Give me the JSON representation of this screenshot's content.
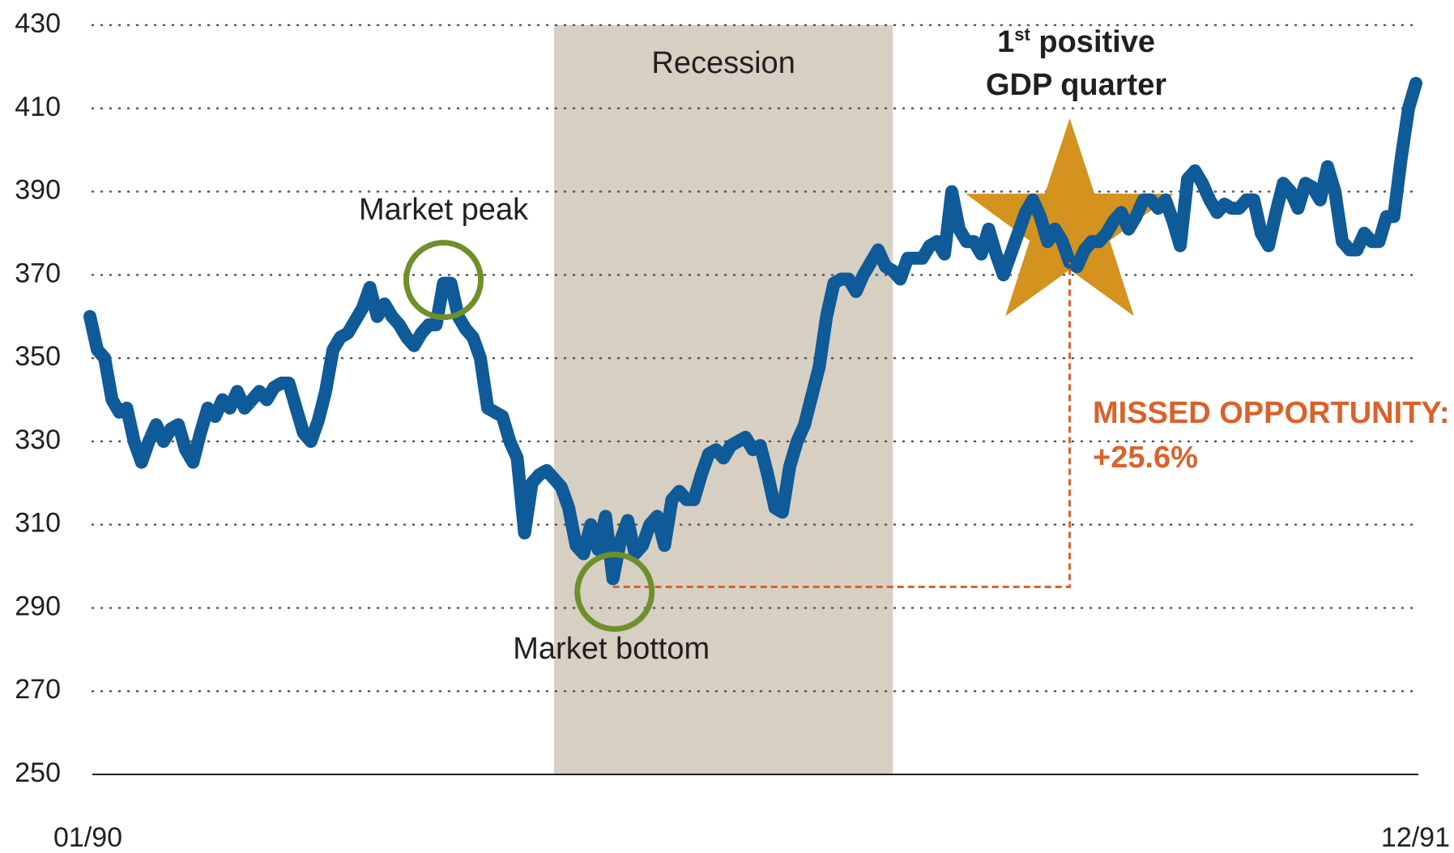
{
  "chart_data": {
    "type": "line",
    "categories": [
      "01/90",
      null,
      null,
      null,
      null,
      null,
      null,
      null,
      null,
      null,
      null,
      null,
      null,
      null,
      null,
      null,
      null,
      null,
      null,
      null,
      null,
      null,
      null,
      null,
      null,
      null,
      null,
      null,
      null,
      null,
      null,
      null,
      null,
      null,
      null,
      null,
      null,
      null,
      null,
      null,
      null,
      null,
      null,
      null,
      null,
      null,
      null,
      null,
      null,
      null,
      null,
      null,
      null,
      null,
      null,
      null,
      null,
      null,
      null,
      null,
      null,
      null,
      null,
      null,
      null,
      null,
      null,
      null,
      null,
      null,
      null,
      null,
      null,
      null,
      null,
      null,
      null,
      null,
      null,
      null,
      null,
      null,
      null,
      null,
      null,
      null,
      null,
      null,
      null,
      null,
      null,
      null,
      null,
      null,
      null,
      null,
      null,
      null,
      null,
      null,
      null,
      null,
      null,
      null,
      null,
      null,
      null,
      null,
      null,
      null,
      null,
      null,
      null,
      null,
      null,
      null,
      null,
      null,
      null,
      null,
      null,
      null,
      null,
      null,
      null,
      null,
      null,
      null,
      null,
      null,
      null,
      null,
      null,
      null,
      null,
      null,
      null,
      null,
      null,
      null,
      null,
      null,
      null,
      null,
      null,
      null,
      null,
      null,
      null,
      null,
      null,
      null,
      null,
      null,
      null,
      null,
      null,
      null,
      null,
      null,
      null,
      null,
      null,
      null,
      null,
      null,
      null,
      null,
      null,
      null,
      null,
      null,
      null,
      null,
      null,
      null,
      null,
      null,
      null,
      null,
      "12/91"
    ],
    "series": [
      {
        "name": null,
        "color": "#0f5a98",
        "values": [
          360,
          352,
          350,
          340,
          337,
          338,
          330,
          325,
          330,
          334,
          330,
          333,
          334,
          328,
          325,
          332,
          338,
          336,
          340,
          338,
          342,
          338,
          340,
          342,
          340,
          343,
          344,
          344,
          338,
          332,
          330,
          335,
          342,
          352,
          355,
          356,
          359,
          362,
          367,
          360,
          363,
          360,
          358,
          355,
          353,
          356,
          358,
          358,
          368,
          368,
          360,
          357,
          355,
          350,
          338,
          337,
          336,
          330,
          326,
          308,
          320,
          322,
          323,
          321,
          319,
          314,
          305,
          303,
          310,
          304,
          312,
          297,
          306,
          311,
          303,
          305,
          310,
          312,
          305,
          316,
          318,
          316,
          316,
          322,
          327,
          328,
          326,
          329,
          330,
          331,
          328,
          329,
          322,
          314,
          313,
          324,
          330,
          334,
          341,
          348,
          360,
          368,
          369,
          369,
          366,
          370,
          373,
          376,
          372,
          371,
          369,
          374,
          374,
          374,
          377,
          378,
          375,
          390,
          381,
          378,
          378,
          375,
          381,
          375,
          370,
          375,
          380,
          385,
          388,
          384,
          378,
          381,
          378,
          373,
          372,
          376,
          378,
          378,
          380,
          383,
          385,
          381,
          384,
          388,
          388,
          386,
          388,
          383,
          377,
          393,
          395,
          392,
          388,
          385,
          387,
          386,
          386,
          388,
          388,
          380,
          377,
          385,
          392,
          390,
          386,
          392,
          391,
          388,
          396,
          390,
          378,
          376,
          376,
          380,
          378,
          378,
          384,
          384,
          398,
          410,
          416
        ]
      }
    ],
    "ylim": [
      250,
      430
    ],
    "yticks": [
      250,
      270,
      290,
      310,
      330,
      350,
      370,
      390,
      410,
      430
    ],
    "grid": true,
    "recession": {
      "label": "Recession",
      "start": 63,
      "end": 109,
      "color": "#d7cfc2"
    },
    "market_peak": {
      "label": "Market peak",
      "index": 48
    },
    "market_bottom": {
      "label": "Market bottom",
      "index": 71
    },
    "gdp_quarter": {
      "number": "1",
      "suffix": "st",
      "line1": " positive",
      "line2": "GDP quarter",
      "index": 133
    },
    "missed_opportunity": {
      "label": "MISSED OPPORTUNITY:",
      "value_label": "+25.6%"
    }
  }
}
